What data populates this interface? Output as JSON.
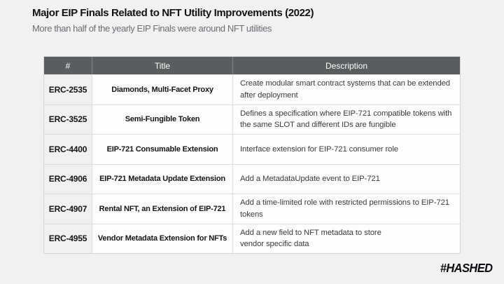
{
  "slide": {
    "title": "Major EIP Finals Related to NFT Utility Improvements (2022)",
    "subtitle": "More than half of the yearly EIP Finals were around NFT utilities",
    "logo_text": "#HASHED"
  },
  "table": {
    "columns": [
      "#",
      "Title",
      "Description"
    ],
    "rows": [
      {
        "id": "ERC-2535",
        "title": "Diamonds, Multi-Facet Proxy",
        "description": "Create modular smart contract systems that can be extended after deployment"
      },
      {
        "id": "ERC-3525",
        "title": "Semi-Fungible Token",
        "description": "Defines a specification where EIP-721 compatible tokens with the same SLOT and different IDs are fungible"
      },
      {
        "id": "ERC-4400",
        "title": "EIP-721 Consumable Extension",
        "description": "Interface extension for EIP-721 consumer role"
      },
      {
        "id": "ERC-4906",
        "title": "EIP-721 Metadata Update Extension",
        "description": "Add a MetadataUpdate event to EIP-721"
      },
      {
        "id": "ERC-4907",
        "title": "Rental NFT, an Extension of EIP-721",
        "description": "Add a time-limited role with restricted permissions to EIP-721 tokens"
      },
      {
        "id": "ERC-4955",
        "title": "Vendor Metadata Extension for NFTs",
        "description": "Add a new field to NFT metadata to store\nvendor specific data"
      }
    ]
  },
  "colors": {
    "background": "#f1f1f2",
    "header_background": "#5c5d5f",
    "header_text": "#ffffff",
    "id_column_background": "#f0f0f1",
    "cell_background": "#fdfdfd",
    "border": "#dddddf",
    "title_text": "#131314",
    "subtitle_text": "#6c6d6f",
    "description_text": "#3b3b3c"
  }
}
